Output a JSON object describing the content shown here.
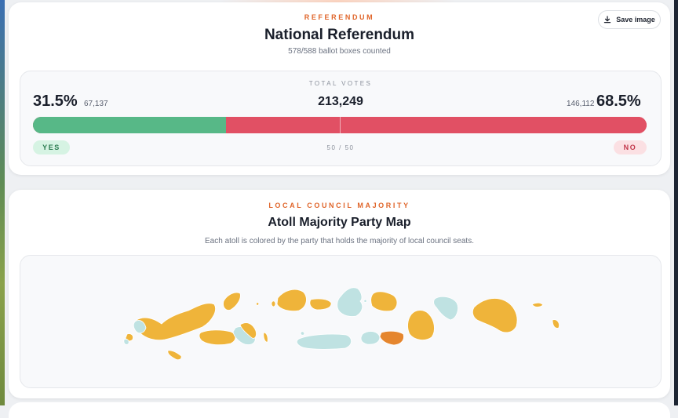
{
  "referendum": {
    "kicker": "REFERENDUM",
    "title": "National Referendum",
    "subtitle": "578/588 ballot boxes counted",
    "save_label": "Save image",
    "total_votes_label": "TOTAL VOTES",
    "total_votes": "213,249",
    "yes": {
      "percent": "31.5%",
      "count": "67,137",
      "label": "YES",
      "share": 0.315
    },
    "no": {
      "percent": "68.5%",
      "count": "146,112",
      "label": "NO",
      "share": 0.685
    },
    "threshold_label": "50 / 50"
  },
  "map": {
    "kicker": "LOCAL COUNCIL MAJORITY",
    "title": "Atoll Majority Party Map",
    "subtitle": "Each atoll is colored by the party that holds the majority of local council seats."
  },
  "colors": {
    "accent": "#e0652a",
    "yes": "#57b887",
    "no": "#e15064",
    "party_gold": "#efb43a",
    "party_teal": "#bfe2e2",
    "party_orange": "#e5862e"
  },
  "icons": {
    "save": "download-icon"
  }
}
